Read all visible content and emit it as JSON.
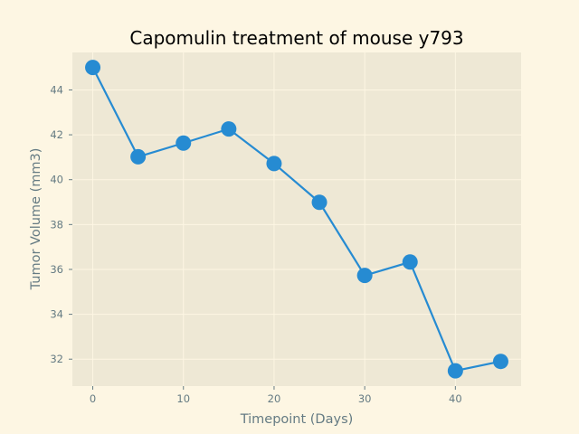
{
  "chart_data": {
    "type": "line",
    "title": "Capomulin treatment of mouse y793",
    "xlabel": "Timepoint (Days)",
    "ylabel": "Tumor Volume (mm3)",
    "x": [
      0,
      5,
      10,
      15,
      20,
      25,
      30,
      35,
      40,
      45
    ],
    "series": [
      {
        "values": [
          45.0,
          41.02,
          41.63,
          42.26,
          40.72,
          38.99,
          35.73,
          36.33,
          31.48,
          31.9
        ],
        "color": "#268bd2"
      }
    ],
    "xlim": [
      -2.25,
      47.25
    ],
    "ylim": [
      30.8,
      45.67
    ],
    "xticks": [
      "0",
      "10",
      "20",
      "30",
      "40"
    ],
    "yticks": [
      "32",
      "34",
      "36",
      "38",
      "40",
      "42",
      "44"
    ],
    "grid": true,
    "legend": "none",
    "colors": {
      "page_background": "#fdf6e3",
      "plot_background": "#eee8d5",
      "grid": "#fdf6e3",
      "axis_text": "#657b83",
      "line": "#268bd2"
    }
  }
}
